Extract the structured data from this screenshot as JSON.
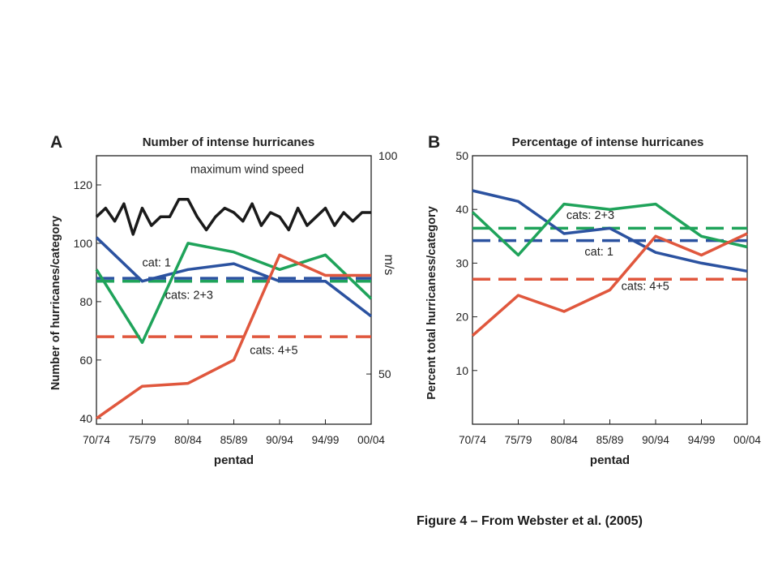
{
  "caption": "Figure 4 – From Webster et al. (2005)",
  "colors": {
    "blue": "#2b52a0",
    "green": "#1fa35a",
    "red": "#e0573d",
    "black": "#1a1a1a",
    "axis": "#222222"
  },
  "chart_data": [
    {
      "type": "line",
      "panel_label": "A",
      "title": "Number of intense hurricanes",
      "xlabel": "pentad",
      "ylabel": "Number of hurricanes/category",
      "y2label": "m/s",
      "categories": [
        "70/74",
        "75/79",
        "80/84",
        "85/89",
        "90/94",
        "94/99",
        "00/04"
      ],
      "ylim": [
        38,
        130
      ],
      "yticks": [
        40,
        60,
        80,
        100,
        120
      ],
      "y2lim": [
        38.5,
        100
      ],
      "y2ticks": [
        50,
        100
      ],
      "grid": false,
      "series": [
        {
          "name": "cat: 1",
          "color": "blue",
          "style": "solid",
          "x": [
            0,
            1,
            2,
            3,
            4,
            5,
            6
          ],
          "values": [
            102,
            87,
            91,
            93,
            87,
            87,
            75
          ]
        },
        {
          "name": "cats: 2+3",
          "color": "green",
          "style": "solid",
          "x": [
            0,
            1,
            2,
            3,
            4,
            5,
            6
          ],
          "values": [
            91,
            66,
            100,
            97,
            91,
            96,
            81
          ]
        },
        {
          "name": "cats: 4+5",
          "color": "red",
          "style": "solid",
          "x": [
            0,
            1,
            2,
            3,
            4,
            5,
            6
          ],
          "values": [
            40,
            51,
            52,
            60,
            96,
            89,
            89
          ]
        },
        {
          "name": "cat: 1",
          "color": "blue",
          "style": "dashed",
          "x": [
            0,
            6
          ],
          "values": [
            88,
            88
          ]
        },
        {
          "name": "cats: 2+3",
          "color": "green",
          "style": "dashed",
          "x": [
            0,
            6
          ],
          "values": [
            87,
            87
          ]
        },
        {
          "name": "cats: 4+5",
          "color": "red",
          "style": "dashed",
          "x": [
            0,
            6
          ],
          "values": [
            68,
            68
          ]
        },
        {
          "name": "maximum wind speed",
          "color": "black",
          "style": "solid",
          "axis": "right",
          "x": [
            0,
            0.2,
            0.4,
            0.6,
            0.8,
            1.0,
            1.2,
            1.4,
            1.6,
            1.8,
            2.0,
            2.2,
            2.4,
            2.6,
            2.8,
            3.0,
            3.2,
            3.4,
            3.6,
            3.8,
            4.0,
            4.2,
            4.4,
            4.6,
            4.8,
            5.0,
            5.2,
            5.4,
            5.6,
            5.8,
            6.0
          ],
          "values": [
            86,
            88,
            85,
            89,
            82,
            88,
            84,
            86,
            86,
            90,
            90,
            86,
            83,
            86,
            88,
            87,
            85,
            89,
            84,
            87,
            86,
            83,
            88,
            84,
            86,
            88,
            84,
            87,
            85,
            87,
            87
          ]
        }
      ],
      "annotations": [
        {
          "text": "maximum wind speed",
          "x": 2.05,
          "y": 124
        },
        {
          "text": "cat: 1",
          "x": 1.0,
          "y": 92
        },
        {
          "text": "cats: 2+3",
          "x": 1.5,
          "y": 81
        },
        {
          "text": "cats: 4+5",
          "x": 3.35,
          "y": 62
        }
      ]
    },
    {
      "type": "line",
      "panel_label": "B",
      "title": "Percentage of intense hurricanes",
      "xlabel": "pentad",
      "ylabel": "Percent  total hurricaness/category",
      "categories": [
        "70/74",
        "75/79",
        "80/84",
        "85/89",
        "90/94",
        "94/99",
        "00/04"
      ],
      "ylim": [
        0,
        50
      ],
      "yticks": [
        10,
        20,
        30,
        40,
        50
      ],
      "grid": false,
      "series": [
        {
          "name": "cat: 1",
          "color": "blue",
          "style": "solid",
          "x": [
            0,
            1,
            2,
            3,
            4,
            5,
            6
          ],
          "values": [
            43.5,
            41.5,
            35.5,
            36.5,
            32,
            30,
            28.5
          ]
        },
        {
          "name": "cats: 2+3",
          "color": "green",
          "style": "solid",
          "x": [
            0,
            1,
            2,
            3,
            4,
            5,
            6
          ],
          "values": [
            39.5,
            31.5,
            41,
            40,
            41,
            35,
            33
          ]
        },
        {
          "name": "cats: 4+5",
          "color": "red",
          "style": "solid",
          "x": [
            0,
            1,
            2,
            3,
            4,
            5,
            6
          ],
          "values": [
            16.5,
            24,
            21,
            25,
            35,
            31.5,
            35.5
          ]
        },
        {
          "name": "cats: 2+3",
          "color": "green",
          "style": "dashed",
          "x": [
            0,
            6
          ],
          "values": [
            36.5,
            36.5
          ]
        },
        {
          "name": "cat: 1",
          "color": "blue",
          "style": "dashed",
          "x": [
            0,
            6
          ],
          "values": [
            34.2,
            34.2
          ]
        },
        {
          "name": "cats: 4+5",
          "color": "red",
          "style": "dashed",
          "x": [
            0,
            6
          ],
          "values": [
            27,
            27
          ]
        }
      ],
      "annotations": [
        {
          "text": "cats: 2+3",
          "x": 2.05,
          "y": 38.2
        },
        {
          "text": "cat: 1",
          "x": 2.45,
          "y": 31.4
        },
        {
          "text": "cats: 4+5",
          "x": 3.25,
          "y": 25.0
        }
      ]
    }
  ]
}
